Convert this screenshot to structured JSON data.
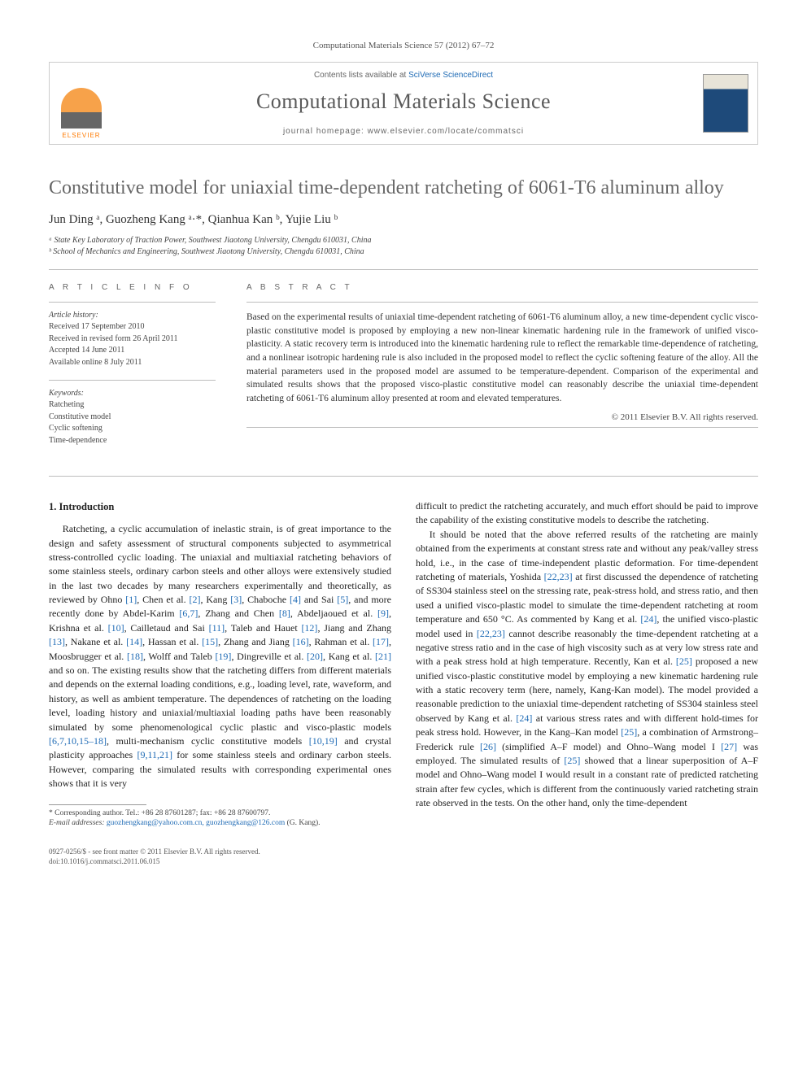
{
  "citation": "Computational Materials Science 57 (2012) 67–72",
  "header": {
    "contents_prefix": "Contents lists available at ",
    "contents_link": "SciVerse ScienceDirect",
    "journal_name": "Computational Materials Science",
    "homepage_prefix": "journal homepage: ",
    "homepage_url": "www.elsevier.com/locate/commatsci",
    "logo_text": "ELSEVIER"
  },
  "title": "Constitutive model for uniaxial time-dependent ratcheting of 6061-T6 aluminum alloy",
  "authors_html": "Jun Ding ᵃ, Guozheng Kang ᵃ·*, Qianhua Kan ᵇ, Yujie Liu ᵇ",
  "affiliations": [
    "ᵃ State Key Laboratory of Traction Power, Southwest Jiaotong University, Chengdu 610031, China",
    "ᵇ School of Mechanics and Engineering, Southwest Jiaotong University, Chengdu 610031, China"
  ],
  "article_info": {
    "head": "A R T I C L E   I N F O",
    "history_head": "Article history:",
    "history": [
      "Received 17 September 2010",
      "Received in revised form 26 April 2011",
      "Accepted 14 June 2011",
      "Available online 8 July 2011"
    ],
    "keywords_head": "Keywords:",
    "keywords": [
      "Ratcheting",
      "Constitutive model",
      "Cyclic softening",
      "Time-dependence"
    ]
  },
  "abstract": {
    "head": "A B S T R A C T",
    "text": "Based on the experimental results of uniaxial time-dependent ratcheting of 6061-T6 aluminum alloy, a new time-dependent cyclic visco-plastic constitutive model is proposed by employing a new non-linear kinematic hardening rule in the framework of unified visco-plasticity. A static recovery term is introduced into the kinematic hardening rule to reflect the remarkable time-dependence of ratcheting, and a nonlinear isotropic hardening rule is also included in the proposed model to reflect the cyclic softening feature of the alloy. All the material parameters used in the proposed model are assumed to be temperature-dependent. Comparison of the experimental and simulated results shows that the proposed visco-plastic constitutive model can reasonably describe the uniaxial time-dependent ratcheting of 6061-T6 aluminum alloy presented at room and elevated temperatures.",
    "copyright": "© 2011 Elsevier B.V. All rights reserved."
  },
  "section1_head": "1. Introduction",
  "para1": "Ratcheting, a cyclic accumulation of inelastic strain, is of great importance to the design and safety assessment of structural components subjected to asymmetrical stress-controlled cyclic loading. The uniaxial and multiaxial ratcheting behaviors of some stainless steels, ordinary carbon steels and other alloys were extensively studied in the last two decades by many researchers experimentally and theoretically, as reviewed by Ohno [1], Chen et al. [2], Kang [3], Chaboche [4] and Sai [5], and more recently done by Abdel-Karim [6,7], Zhang and Chen [8], Abdeljaoued et al. [9], Krishna et al. [10], Cailletaud and Sai [11], Taleb and Hauet [12], Jiang and Zhang [13], Nakane et al. [14], Hassan et al. [15], Zhang and Jiang [16], Rahman et al. [17], Moosbrugger et al. [18], Wolff and Taleb [19], Dingreville et al. [20], Kang et al. [21] and so on. The existing results show that the ratcheting differs from different materials and depends on the external loading conditions, e.g., loading level, rate, waveform, and history, as well as ambient temperature. The dependences of ratcheting on the loading level, loading history and uniaxial/multiaxial loading paths have been reasonably simulated by some phenomenological cyclic plastic and visco-plastic models [6,7,10,15–18], multi-mechanism cyclic constitutive models [10,19] and crystal plasticity approaches [9,11,21] for some stainless steels and ordinary carbon steels. However, comparing the simulated results with corresponding experimental ones shows that it is very",
  "para2": "difficult to predict the ratcheting accurately, and much effort should be paid to improve the capability of the existing constitutive models to describe the ratcheting.",
  "para3": "It should be noted that the above referred results of the ratcheting are mainly obtained from the experiments at constant stress rate and without any peak/valley stress hold, i.e., in the case of time-independent plastic deformation. For time-dependent ratcheting of materials, Yoshida [22,23] at first discussed the dependence of ratcheting of SS304 stainless steel on the stressing rate, peak-stress hold, and stress ratio, and then used a unified visco-plastic model to simulate the time-dependent ratcheting at room temperature and 650 °C. As commented by Kang et al. [24], the unified visco-plastic model used in [22,23] cannot describe reasonably the time-dependent ratcheting at a negative stress ratio and in the case of high viscosity such as at very low stress rate and with a peak stress hold at high temperature. Recently, Kan et al. [25] proposed a new unified visco-plastic constitutive model by employing a new kinematic hardening rule with a static recovery term (here, namely, Kang-Kan model). The model provided a reasonable prediction to the uniaxial time-dependent ratcheting of SS304 stainless steel observed by Kang et al. [24] at various stress rates and with different hold-times for peak stress hold. However, in the Kang–Kan model [25], a combination of Armstrong–Frederick rule [26] (simplified A–F model) and Ohno–Wang model I [27] was employed. The simulated results of [25] showed that a linear superposition of A–F model and Ohno–Wang model I would result in a constant rate of predicted ratcheting strain after few cycles, which is different from the continuously varied ratcheting strain rate observed in the tests. On the other hand, only the time-dependent",
  "footnote": {
    "corr": "* Corresponding author. Tel.: +86 28 87601287; fax: +86 28 87600797.",
    "email_label": "E-mail addresses:",
    "emails": "guozhengkang@yahoo.com.cn, guozhengkang@126.com",
    "email_suffix": "(G. Kang)."
  },
  "footer": {
    "line1": "0927-0256/$ - see front matter © 2011 Elsevier B.V. All rights reserved.",
    "line2": "doi:10.1016/j.commatsci.2011.06.015"
  },
  "colors": {
    "link": "#1f6bb5",
    "title": "#676767",
    "rule": "#bdbdbd",
    "text": "#333333"
  }
}
